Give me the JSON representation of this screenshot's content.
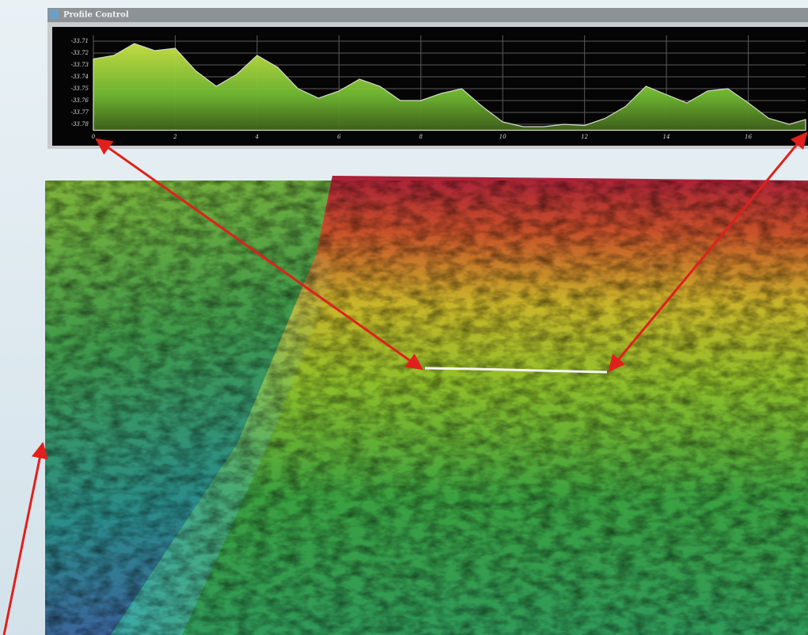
{
  "window": {
    "title": "Profile Control"
  },
  "chart_data": {
    "type": "area",
    "x": [
      0,
      0.5,
      1,
      1.5,
      2,
      2.5,
      3,
      3.5,
      4,
      4.5,
      5,
      5.5,
      6,
      6.5,
      7,
      7.5,
      8,
      8.5,
      9,
      9.5,
      10,
      10.5,
      11,
      11.5,
      12,
      12.5,
      13,
      13.5,
      14,
      14.5,
      15,
      15.5,
      16,
      16.5,
      17,
      17.4
    ],
    "values": [
      -33.725,
      -33.722,
      -33.712,
      -33.718,
      -33.716,
      -33.735,
      -33.748,
      -33.738,
      -33.722,
      -33.732,
      -33.75,
      -33.758,
      -33.752,
      -33.742,
      -33.748,
      -33.76,
      -33.76,
      -33.754,
      -33.75,
      -33.765,
      -33.778,
      -33.782,
      -33.782,
      -33.78,
      -33.781,
      -33.775,
      -33.765,
      -33.748,
      -33.755,
      -33.762,
      -33.752,
      -33.75,
      -33.762,
      -33.775,
      -33.78,
      -33.776
    ],
    "color": "#9fd23a",
    "xlim": [
      0,
      17.4
    ],
    "xticks": [
      0,
      2,
      4,
      6,
      8,
      10,
      12,
      14,
      16
    ],
    "ylim": [
      -33.785,
      -33.705
    ],
    "yticks": [
      -33.71,
      -33.72,
      -33.73,
      -33.74,
      -33.75,
      -33.76,
      -33.77,
      -33.78
    ],
    "grid": true
  }
}
